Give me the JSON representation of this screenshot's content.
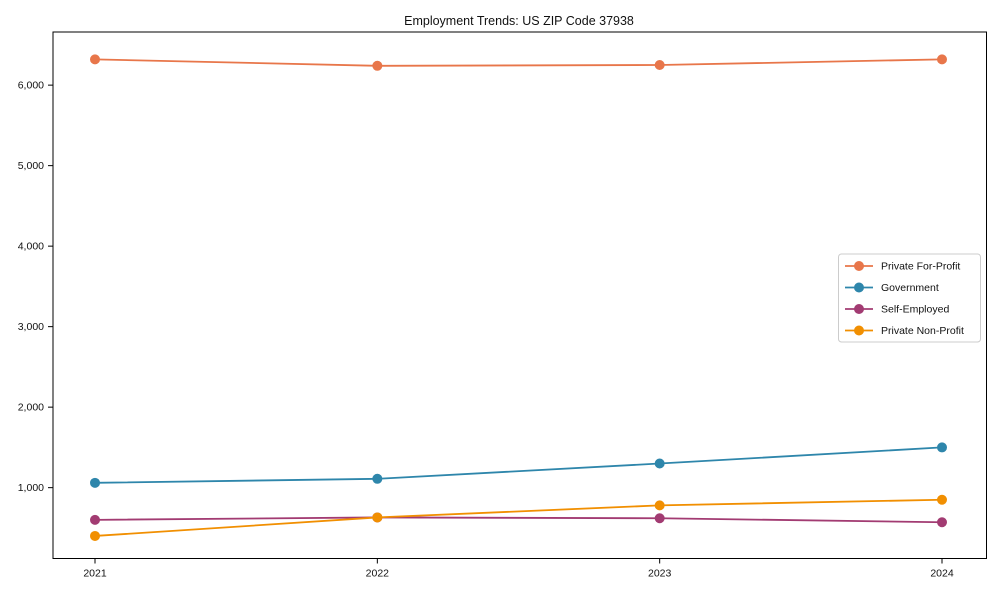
{
  "title": "Employment Trends: US ZIP Code 37938",
  "chart_data": {
    "type": "line",
    "title": "Employment Trends: US ZIP Code 37938",
    "xlabel": "",
    "ylabel": "",
    "grid": false,
    "background": "#ffffff",
    "legend_position": "center-right",
    "x": [
      2021,
      2022,
      2023,
      2024
    ],
    "x_tick_labels": [
      "2021",
      "2022",
      "2023",
      "2024"
    ],
    "y_ticks": [
      1000,
      2000,
      3000,
      4000,
      5000,
      6000
    ],
    "y_tick_labels": [
      "1,000",
      "2,000",
      "3,000",
      "4,000",
      "5,000",
      "6,000"
    ],
    "ylim": [
      120,
      6660
    ],
    "marker": "circle",
    "series": [
      {
        "name": "Private For-Profit",
        "color": "#E8764A",
        "values": [
          6320,
          6240,
          6250,
          6320
        ]
      },
      {
        "name": "Government",
        "color": "#2E86AB",
        "values": [
          1060,
          1110,
          1300,
          1500
        ]
      },
      {
        "name": "Self-Employed",
        "color": "#A23B72",
        "values": [
          600,
          630,
          620,
          570
        ]
      },
      {
        "name": "Private Non-Profit",
        "color": "#F18F01",
        "values": [
          400,
          630,
          780,
          850
        ]
      }
    ]
  }
}
